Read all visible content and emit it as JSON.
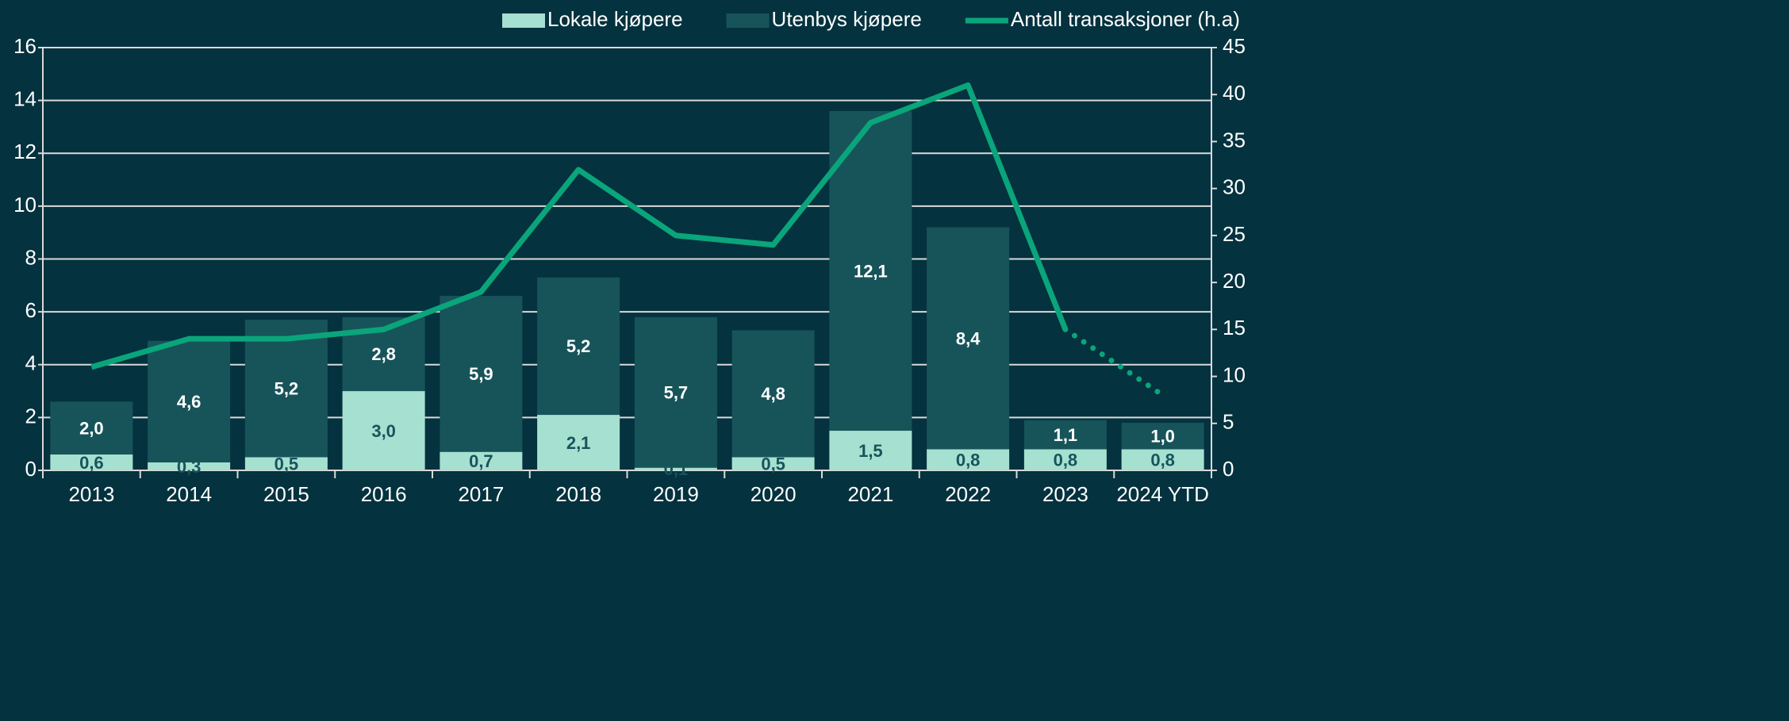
{
  "chart_data": {
    "type": "bar",
    "stacked": true,
    "categories": [
      "2013",
      "2014",
      "2015",
      "2016",
      "2017",
      "2018",
      "2019",
      "2020",
      "2021",
      "2022",
      "2023",
      "2024 YTD"
    ],
    "series": [
      {
        "name": "Lokale kjøpere",
        "color": "#a6e0d1",
        "label_color": "#17545a",
        "values": [
          0.6,
          0.3,
          0.5,
          3.0,
          0.7,
          2.1,
          0.1,
          0.5,
          1.5,
          0.8,
          0.8,
          0.8
        ],
        "value_labels": [
          "0,6",
          "0,3",
          "0,5",
          "3,0",
          "0,7",
          "2,1",
          "0,1",
          "0,5",
          "1,5",
          "0,8",
          "0,8",
          "0,8"
        ]
      },
      {
        "name": "Utenbys kjøpere",
        "color": "#17545a",
        "label_color": "#ffffff",
        "values": [
          2.0,
          4.6,
          5.2,
          2.8,
          5.9,
          5.2,
          5.7,
          4.8,
          12.1,
          8.4,
          1.1,
          1.0
        ],
        "value_labels": [
          "2,0",
          "4,6",
          "5,2",
          "2,8",
          "5,9",
          "5,2",
          "5,7",
          "4,8",
          "12,1",
          "8,4",
          "1,1",
          "1,0"
        ]
      },
      {
        "name": "Antall transaksjoner (h.a)",
        "type": "line",
        "axis": "y2",
        "color": "#0aa57a",
        "values": [
          11,
          14,
          14,
          15,
          19,
          32,
          25,
          24,
          37,
          41,
          15,
          8
        ],
        "dotted_from_index": 10
      }
    ],
    "ylim": [
      0,
      16
    ],
    "yticks": [
      0,
      2,
      4,
      6,
      8,
      10,
      12,
      14,
      16
    ],
    "y2lim": [
      0,
      45
    ],
    "y2ticks": [
      0,
      5,
      10,
      15,
      20,
      25,
      30,
      35,
      40,
      45
    ],
    "grid": true,
    "legend": "top"
  }
}
